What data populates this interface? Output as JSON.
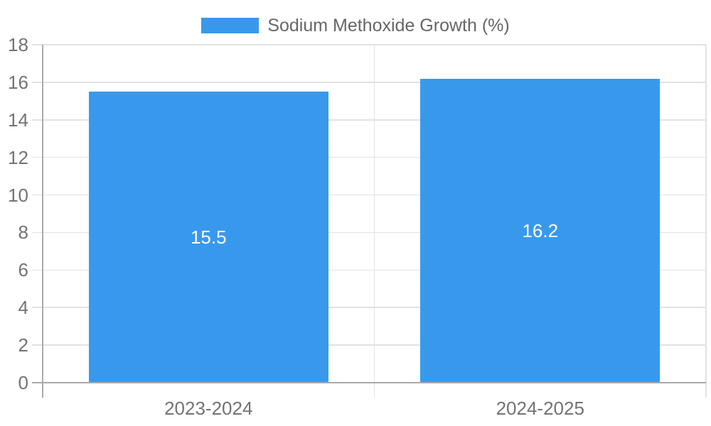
{
  "chart_data": {
    "type": "bar",
    "title": "",
    "categories": [
      "2023-2024",
      "2024-2025"
    ],
    "series": [
      {
        "name": "Sodium Methoxide Growth (%)",
        "values": [
          15.5,
          16.2
        ]
      }
    ],
    "value_labels": [
      "15.5",
      "16.2"
    ],
    "ylim": [
      0,
      18
    ],
    "yticks": [
      0,
      2,
      4,
      6,
      8,
      10,
      12,
      14,
      16,
      18
    ],
    "grid": true,
    "legend_position": "top",
    "xlabel": "",
    "ylabel": "",
    "colors": {
      "bar": "#3899EC",
      "grid": "#E2E2E2",
      "axis": "#AAAAAA",
      "tick_text": "#737373",
      "legend_text": "#666666",
      "data_label": "#FFFFFF",
      "background": "#FFFFFF"
    }
  }
}
